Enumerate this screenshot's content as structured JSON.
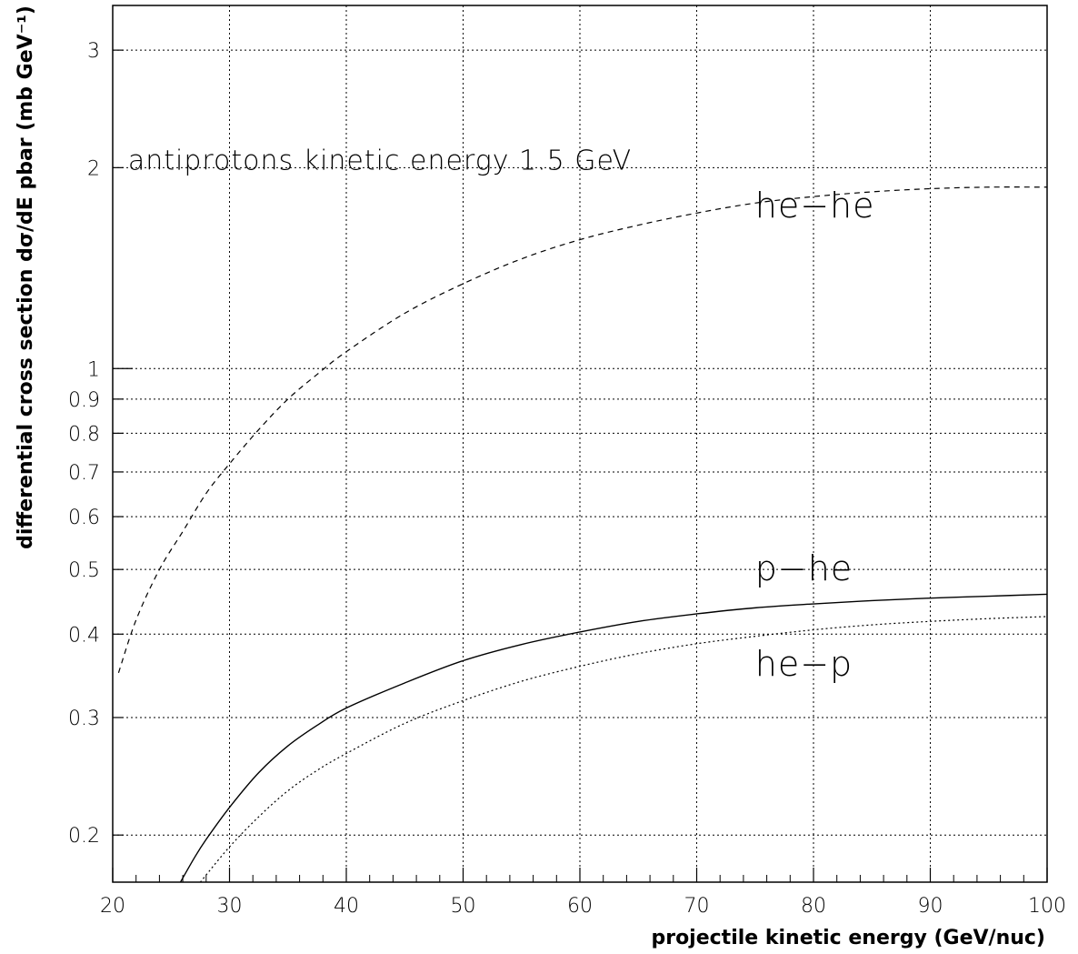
{
  "chart_data": {
    "type": "line",
    "xlabel": "projectile kinetic energy (GeV/nuc)",
    "ylabel": "differential cross section dσ/dE pbar (mb GeV⁻¹)",
    "xlim": [
      20,
      100
    ],
    "ylim": [
      0.17,
      3.5
    ],
    "yscale": "log",
    "grid": true,
    "x_ticks": [
      20,
      30,
      40,
      50,
      60,
      70,
      80,
      90,
      100
    ],
    "x_tick_labels": [
      "20",
      "30",
      "40",
      "50",
      "60",
      "70",
      "80",
      "90",
      "100"
    ],
    "y_ticks": [
      0.2,
      0.3,
      0.4,
      0.5,
      0.6,
      0.7,
      0.8,
      0.9,
      1,
      2,
      3
    ],
    "y_tick_labels": [
      "0.2",
      "0.3",
      "0.4",
      "0.5",
      "0.6",
      "0.7",
      "0.8",
      "0.9",
      "1",
      "2",
      "3"
    ],
    "annotations": [
      {
        "text": "antiprotons kinetic energy 1.5 GeV",
        "x": 21,
        "y": 2.0
      },
      {
        "text": "he−he",
        "x": 75,
        "y": 1.75
      },
      {
        "text": "p−he",
        "x": 75,
        "y": 0.5
      },
      {
        "text": "he−p",
        "x": 75,
        "y": 0.36
      }
    ],
    "series": [
      {
        "name": "he−he",
        "style": "dashed",
        "x": [
          20.5,
          22,
          24,
          26,
          28,
          30,
          32.5,
          35,
          37.5,
          40,
          45,
          50,
          55,
          60,
          65,
          70,
          75,
          80,
          85,
          90,
          95,
          100
        ],
        "y": [
          0.35,
          0.42,
          0.5,
          0.57,
          0.65,
          0.72,
          0.81,
          0.9,
          0.98,
          1.06,
          1.21,
          1.34,
          1.46,
          1.56,
          1.64,
          1.71,
          1.77,
          1.81,
          1.84,
          1.86,
          1.87,
          1.87
        ]
      },
      {
        "name": "p−he",
        "style": "solid",
        "x": [
          25.8,
          27,
          28,
          30,
          32.5,
          35,
          37.5,
          40,
          45,
          50,
          55,
          60,
          65,
          70,
          75,
          80,
          85,
          90,
          95,
          100
        ],
        "y": [
          0.17,
          0.185,
          0.197,
          0.22,
          0.248,
          0.272,
          0.292,
          0.31,
          0.338,
          0.365,
          0.386,
          0.403,
          0.418,
          0.429,
          0.438,
          0.444,
          0.449,
          0.453,
          0.456,
          0.459
        ]
      },
      {
        "name": "he−p",
        "style": "dotted",
        "x": [
          27.5,
          30,
          32.5,
          35,
          37.5,
          40,
          45,
          50,
          55,
          60,
          65,
          70,
          75,
          80,
          85,
          90,
          95,
          100
        ],
        "y": [
          0.17,
          0.192,
          0.213,
          0.233,
          0.25,
          0.265,
          0.294,
          0.318,
          0.34,
          0.358,
          0.374,
          0.387,
          0.397,
          0.406,
          0.413,
          0.418,
          0.422,
          0.425
        ]
      }
    ]
  }
}
